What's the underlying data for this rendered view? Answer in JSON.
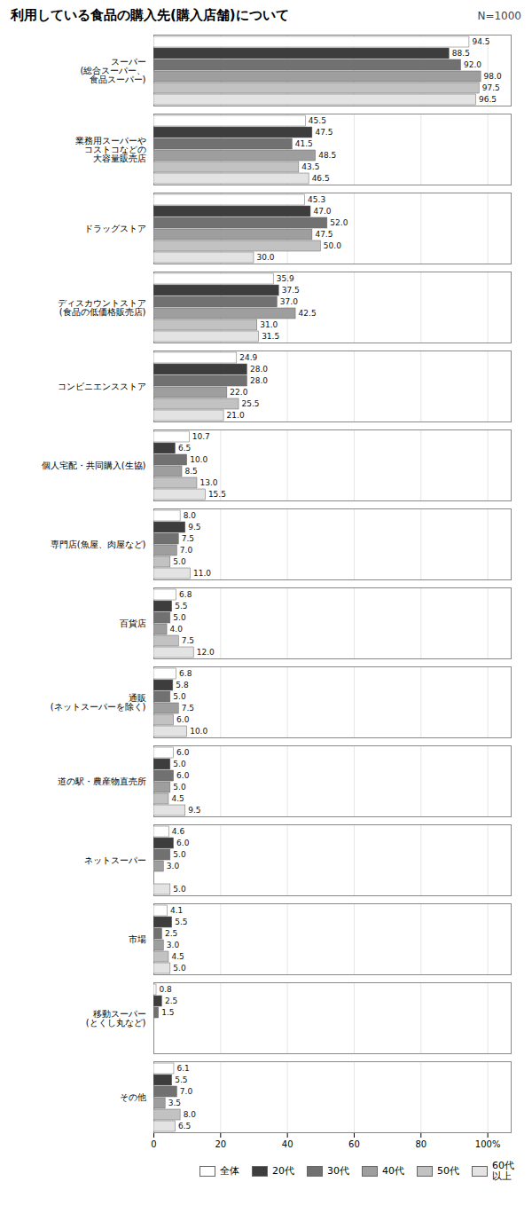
{
  "chart_data": {
    "type": "bar",
    "orientation": "horizontal",
    "title": "利用している食品の購入先(購入店舗)について",
    "subtitle": "N=1000",
    "categories": [
      "スーパー\n(総合スーパー、\n食品スーパー)",
      "業務用スーパーや\nコストコなどの\n大容量販売店",
      "ドラッグストア",
      "ディスカウントストア\n(食品の低価格販売店)",
      "コンビニエンスストア",
      "個人宅配・共同購入(生協)",
      "専門店(魚屋、肉屋など)",
      "百貨店",
      "通販\n(ネットスーパーを除く)",
      "道の駅・農産物直売所",
      "ネットスーパー",
      "市場",
      "移動スーパー\n(とくし丸など)",
      "その他"
    ],
    "series": [
      {
        "name": "全体",
        "color": "#ffffff",
        "values": [
          94.5,
          45.5,
          45.3,
          35.9,
          24.9,
          10.7,
          8.0,
          6.8,
          6.8,
          6.0,
          4.6,
          4.1,
          0.8,
          6.1
        ],
        "value_labels": [
          "94.5",
          "45.5",
          "45.3",
          "35.9",
          "24.9",
          "10.7",
          "8.0",
          "6.8",
          "6.8",
          "6.0",
          "4.6",
          "4.1",
          "0.8",
          "6.1"
        ]
      },
      {
        "name": "20代",
        "color": "#3d3d3d",
        "values": [
          88.5,
          47.5,
          47.0,
          37.5,
          28.0,
          6.5,
          9.5,
          5.5,
          5.8,
          5.0,
          6.0,
          5.5,
          2.5,
          5.5
        ],
        "value_labels": [
          "88.5",
          "47.5",
          "47.0",
          "37.5",
          "28.0",
          "6.5",
          "9.5",
          "5.5",
          "5.8",
          "5.0",
          "6.0",
          "5.5",
          "2.5",
          "5.5"
        ]
      },
      {
        "name": "30代",
        "color": "#717171",
        "values": [
          92.0,
          41.5,
          52.0,
          37.0,
          28.0,
          10.0,
          7.5,
          5.0,
          5.0,
          6.0,
          5.0,
          2.5,
          1.5,
          7.0
        ],
        "value_labels": [
          "92.0",
          "41.5",
          "52.0",
          "37.0",
          "28.0",
          "10.0",
          "7.5",
          "5.0",
          "5.0",
          "6.0",
          "5.0",
          "2.5",
          "1.5",
          "7.0"
        ]
      },
      {
        "name": "40代",
        "color": "#9e9e9e",
        "values": [
          98.0,
          48.5,
          47.5,
          42.5,
          22.0,
          8.5,
          7.0,
          4.0,
          7.5,
          5.0,
          3.0,
          3.0,
          0.0,
          3.5
        ],
        "value_labels": [
          "98.0",
          "48.5",
          "47.5",
          "42.5",
          "22.0",
          "8.5",
          "7.0",
          "4.0",
          "7.5",
          "5.0",
          "3.0",
          "3.0",
          null,
          "3.5"
        ]
      },
      {
        "name": "50代",
        "color": "#c2c2c2",
        "values": [
          97.5,
          43.5,
          50.0,
          31.0,
          25.5,
          13.0,
          5.0,
          7.5,
          6.0,
          4.5,
          0.0,
          4.5,
          0.0,
          8.0
        ],
        "value_labels": [
          "97.5",
          "43.5",
          "50.0",
          "31.0",
          "25.5",
          "13.0",
          "5.0",
          "7.5",
          "6.0",
          "4.5",
          null,
          "4.5",
          null,
          "8.0"
        ]
      },
      {
        "name": "60代\n以上",
        "color": "#e3e3e3",
        "values": [
          96.5,
          46.5,
          30.0,
          31.5,
          21.0,
          15.5,
          11.0,
          12.0,
          10.0,
          9.5,
          5.0,
          5.0,
          0.0,
          6.5
        ],
        "value_labels": [
          "96.5",
          "46.5",
          "30.0",
          "31.5",
          "21.0",
          "15.5",
          "11.0",
          "12.0",
          "10.0",
          "9.5",
          "5.0",
          "5.0",
          null,
          "6.5"
        ]
      }
    ],
    "xlim": [
      0,
      107
    ],
    "xticks": [
      0,
      20,
      40,
      60,
      80,
      {
        "value": 100,
        "label": "100%"
      }
    ],
    "grid": true,
    "legend": "bottom",
    "data_labels": true
  }
}
